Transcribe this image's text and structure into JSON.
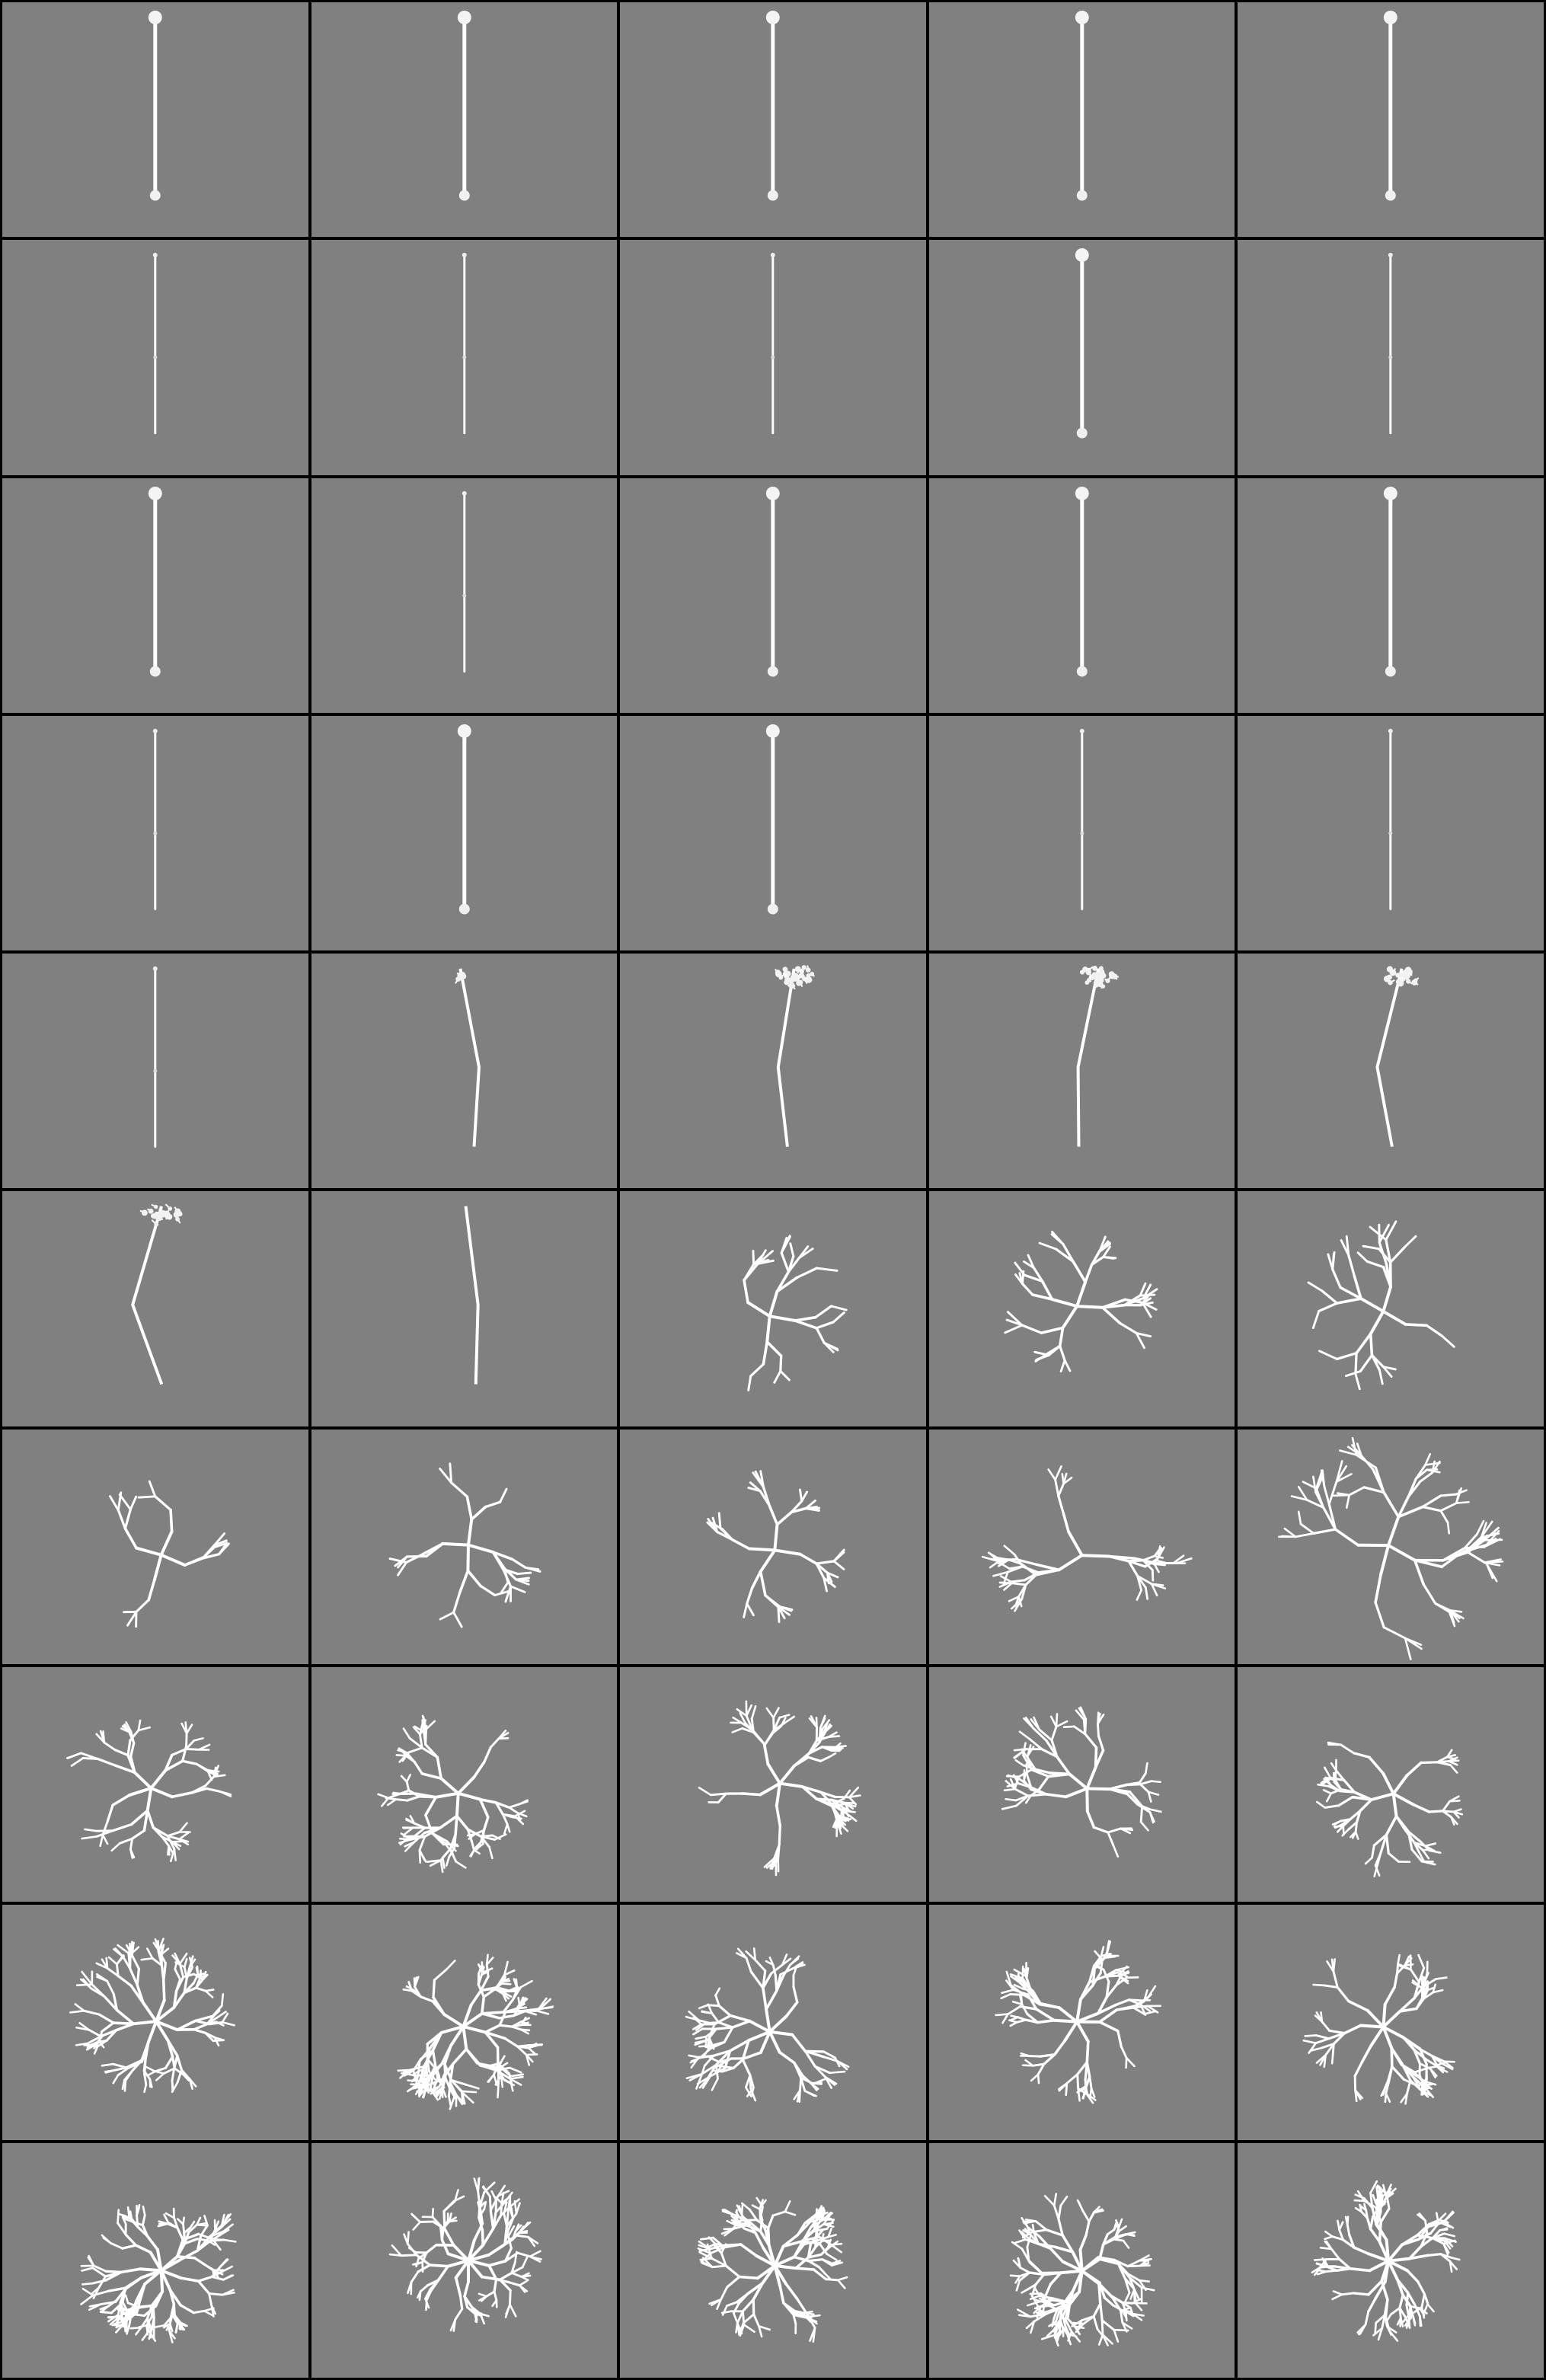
{
  "grid": {
    "rows": 10,
    "columns": 5,
    "background_color": "#808080",
    "border_color": "#000000",
    "figure_color": "#ffffff"
  },
  "cells": [
    {
      "kind": "rod",
      "variant": "bulb"
    },
    {
      "kind": "rod",
      "variant": "bulb"
    },
    {
      "kind": "rod",
      "variant": "bulb"
    },
    {
      "kind": "rod",
      "variant": "bulb"
    },
    {
      "kind": "rod",
      "variant": "bulb"
    },
    {
      "kind": "rod",
      "variant": "thin"
    },
    {
      "kind": "rod",
      "variant": "thin"
    },
    {
      "kind": "rod",
      "variant": "thin"
    },
    {
      "kind": "rod",
      "variant": "bulb"
    },
    {
      "kind": "rod",
      "variant": "thin"
    },
    {
      "kind": "rod",
      "variant": "bulb"
    },
    {
      "kind": "rod",
      "variant": "thin"
    },
    {
      "kind": "rod",
      "variant": "bulb"
    },
    {
      "kind": "rod",
      "variant": "bulb"
    },
    {
      "kind": "rod",
      "variant": "bulb"
    },
    {
      "kind": "rod",
      "variant": "thin"
    },
    {
      "kind": "rod",
      "variant": "bulb"
    },
    {
      "kind": "rod",
      "variant": "bulb"
    },
    {
      "kind": "rod",
      "variant": "thin"
    },
    {
      "kind": "rod",
      "variant": "thin"
    },
    {
      "kind": "rod",
      "variant": "thin"
    },
    {
      "kind": "bent-cluster",
      "variant": "small"
    },
    {
      "kind": "bent-cluster",
      "variant": "medium"
    },
    {
      "kind": "bent-cluster",
      "variant": "medium"
    },
    {
      "kind": "bent-cluster",
      "variant": "medium"
    },
    {
      "kind": "bent-cluster",
      "variant": "medium"
    },
    {
      "kind": "bent-stick",
      "variant": "plain"
    },
    {
      "kind": "branching",
      "variant": "sparse"
    },
    {
      "kind": "branching",
      "variant": "sparse"
    },
    {
      "kind": "branching",
      "variant": "sparse"
    },
    {
      "kind": "branching",
      "variant": "sparse"
    },
    {
      "kind": "branching",
      "variant": "sparse"
    },
    {
      "kind": "branching",
      "variant": "sparse"
    },
    {
      "kind": "branching",
      "variant": "v-shape"
    },
    {
      "kind": "branching",
      "variant": "wide"
    },
    {
      "kind": "branching",
      "variant": "medium"
    },
    {
      "kind": "branching",
      "variant": "medium"
    },
    {
      "kind": "branching",
      "variant": "medium"
    },
    {
      "kind": "branching",
      "variant": "medium"
    },
    {
      "kind": "branching",
      "variant": "medium"
    },
    {
      "kind": "branching",
      "variant": "dense"
    },
    {
      "kind": "branching",
      "variant": "dense"
    },
    {
      "kind": "branching",
      "variant": "dense"
    },
    {
      "kind": "branching",
      "variant": "dense"
    },
    {
      "kind": "branching",
      "variant": "dense"
    },
    {
      "kind": "branching",
      "variant": "very-dense"
    },
    {
      "kind": "branching",
      "variant": "very-dense"
    },
    {
      "kind": "branching",
      "variant": "very-dense"
    },
    {
      "kind": "branching",
      "variant": "very-dense"
    },
    {
      "kind": "branching",
      "variant": "very-dense"
    }
  ]
}
